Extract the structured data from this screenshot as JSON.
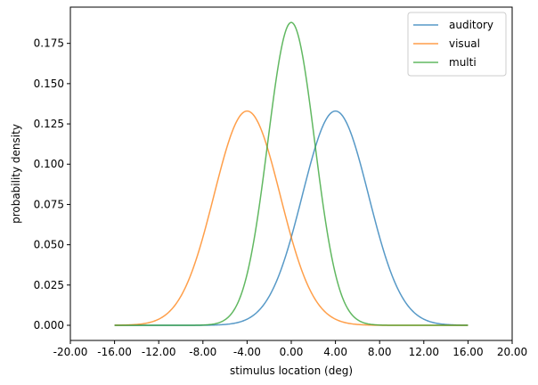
{
  "chart_data": {
    "type": "line",
    "title": "",
    "xlabel": "stimulus location (deg)",
    "ylabel": "probability density",
    "xlim": [
      -20,
      20
    ],
    "ylim": [
      -0.0094,
      0.1975
    ],
    "x_ticks": [
      "-20.00",
      "-16.00",
      "-12.00",
      "-8.00",
      "-4.00",
      "0.00",
      "4.00",
      "8.00",
      "12.00",
      "16.00",
      "20.00"
    ],
    "x_tick_values": [
      -20,
      -16,
      -12,
      -8,
      -4,
      0,
      4,
      8,
      12,
      16,
      20
    ],
    "y_ticks": [
      "0.000",
      "0.025",
      "0.050",
      "0.075",
      "0.100",
      "0.125",
      "0.150",
      "0.175"
    ],
    "y_tick_values": [
      0,
      0.025,
      0.05,
      0.075,
      0.1,
      0.125,
      0.15,
      0.175
    ],
    "x_range": [
      -16,
      16
    ],
    "grid": false,
    "legend_position": "top-right",
    "series": [
      {
        "name": "auditory",
        "distribution": "normal",
        "mean": 4,
        "sd": 3,
        "peak": 0.133,
        "color": "#1f77b4"
      },
      {
        "name": "visual",
        "distribution": "normal",
        "mean": -4,
        "sd": 3,
        "peak": 0.133,
        "color": "#ff7f0e"
      },
      {
        "name": "multi",
        "distribution": "normal",
        "mean": 0,
        "sd": 2.121,
        "peak": 0.188,
        "color": "#2ca02c"
      }
    ]
  }
}
